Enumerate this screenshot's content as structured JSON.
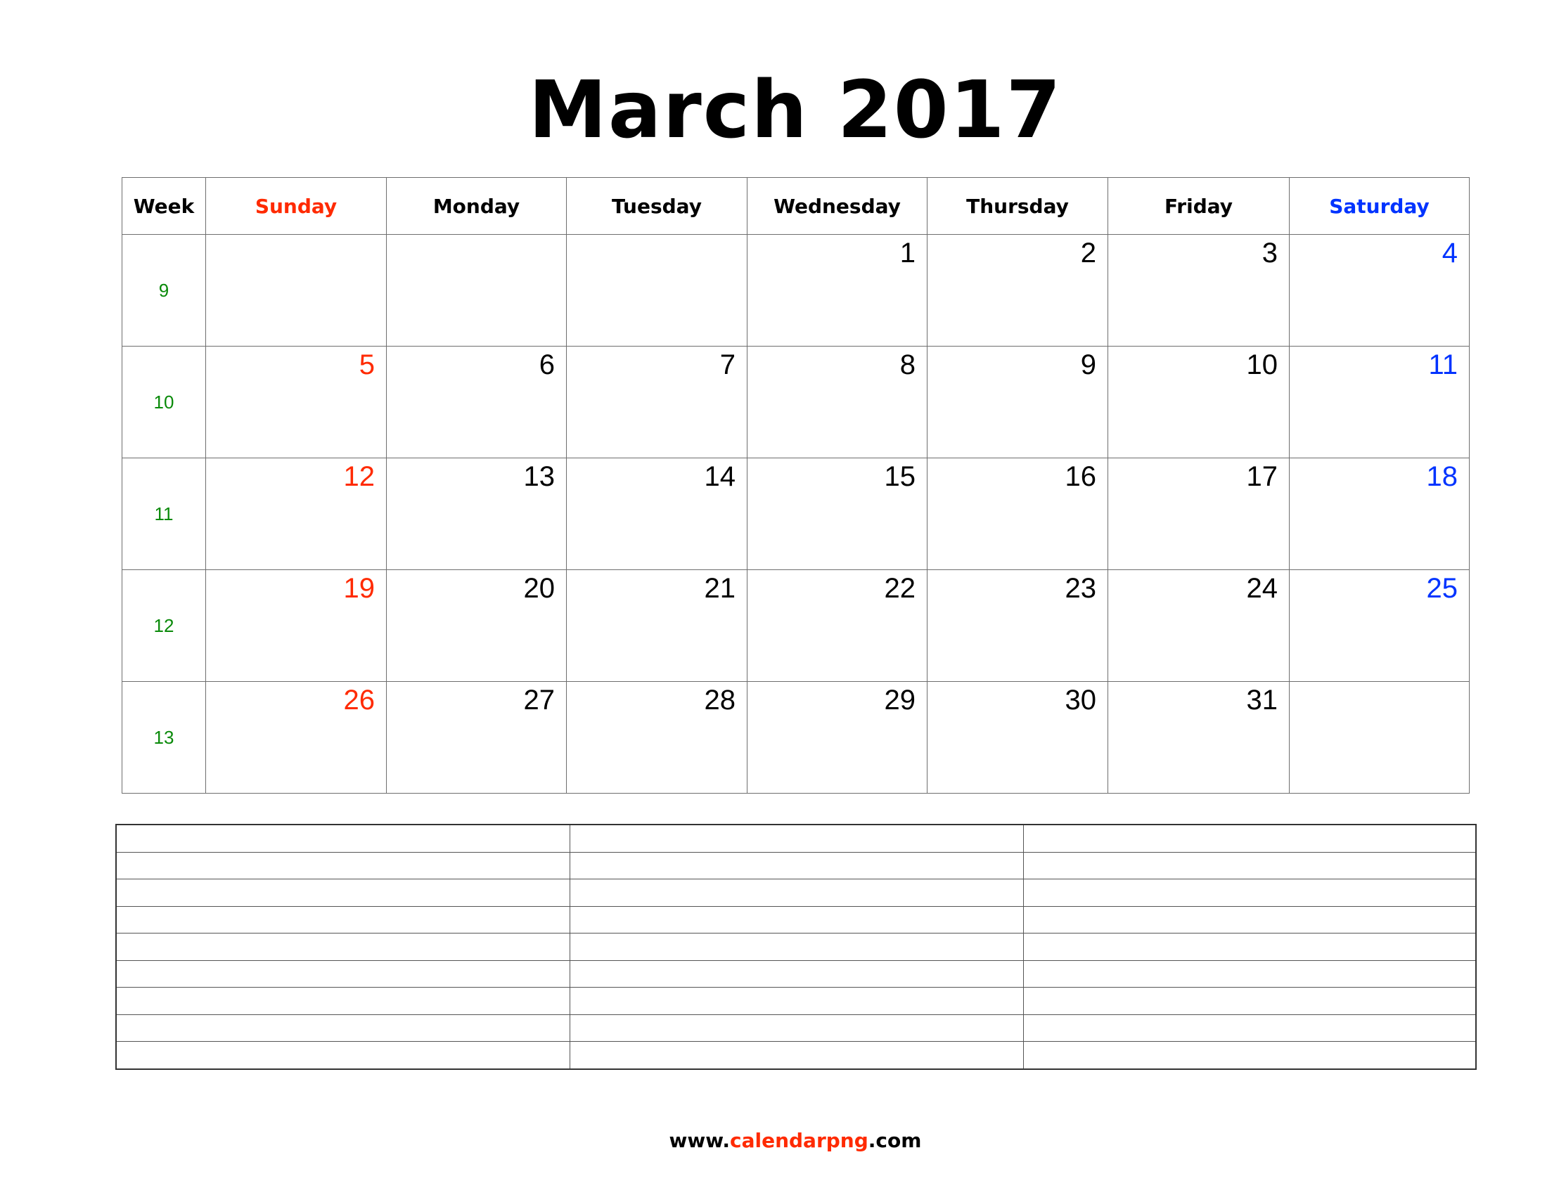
{
  "title": "March 2017",
  "colors": {
    "sunday": "#ff2a00",
    "saturday": "#0033ff",
    "week": "#0a8a0a",
    "text": "#000000",
    "grid": "#6e6e6e"
  },
  "headers": [
    "Week",
    "Sunday",
    "Monday",
    "Tuesday",
    "Wednesday",
    "Thursday",
    "Friday",
    "Saturday"
  ],
  "weeks": [
    {
      "week": "9",
      "days": [
        "",
        "",
        "",
        "1",
        "2",
        "3",
        "4"
      ]
    },
    {
      "week": "10",
      "days": [
        "5",
        "6",
        "7",
        "8",
        "9",
        "10",
        "11"
      ]
    },
    {
      "week": "11",
      "days": [
        "12",
        "13",
        "14",
        "15",
        "16",
        "17",
        "18"
      ]
    },
    {
      "week": "12",
      "days": [
        "19",
        "20",
        "21",
        "22",
        "23",
        "24",
        "25"
      ]
    },
    {
      "week": "13",
      "days": [
        "26",
        "27",
        "28",
        "29",
        "30",
        "31",
        ""
      ]
    }
  ],
  "notes": {
    "rows": 9,
    "columns": 3
  },
  "footer": {
    "prefix": "www.",
    "brand": "calendarpng",
    "suffix": ".com"
  }
}
